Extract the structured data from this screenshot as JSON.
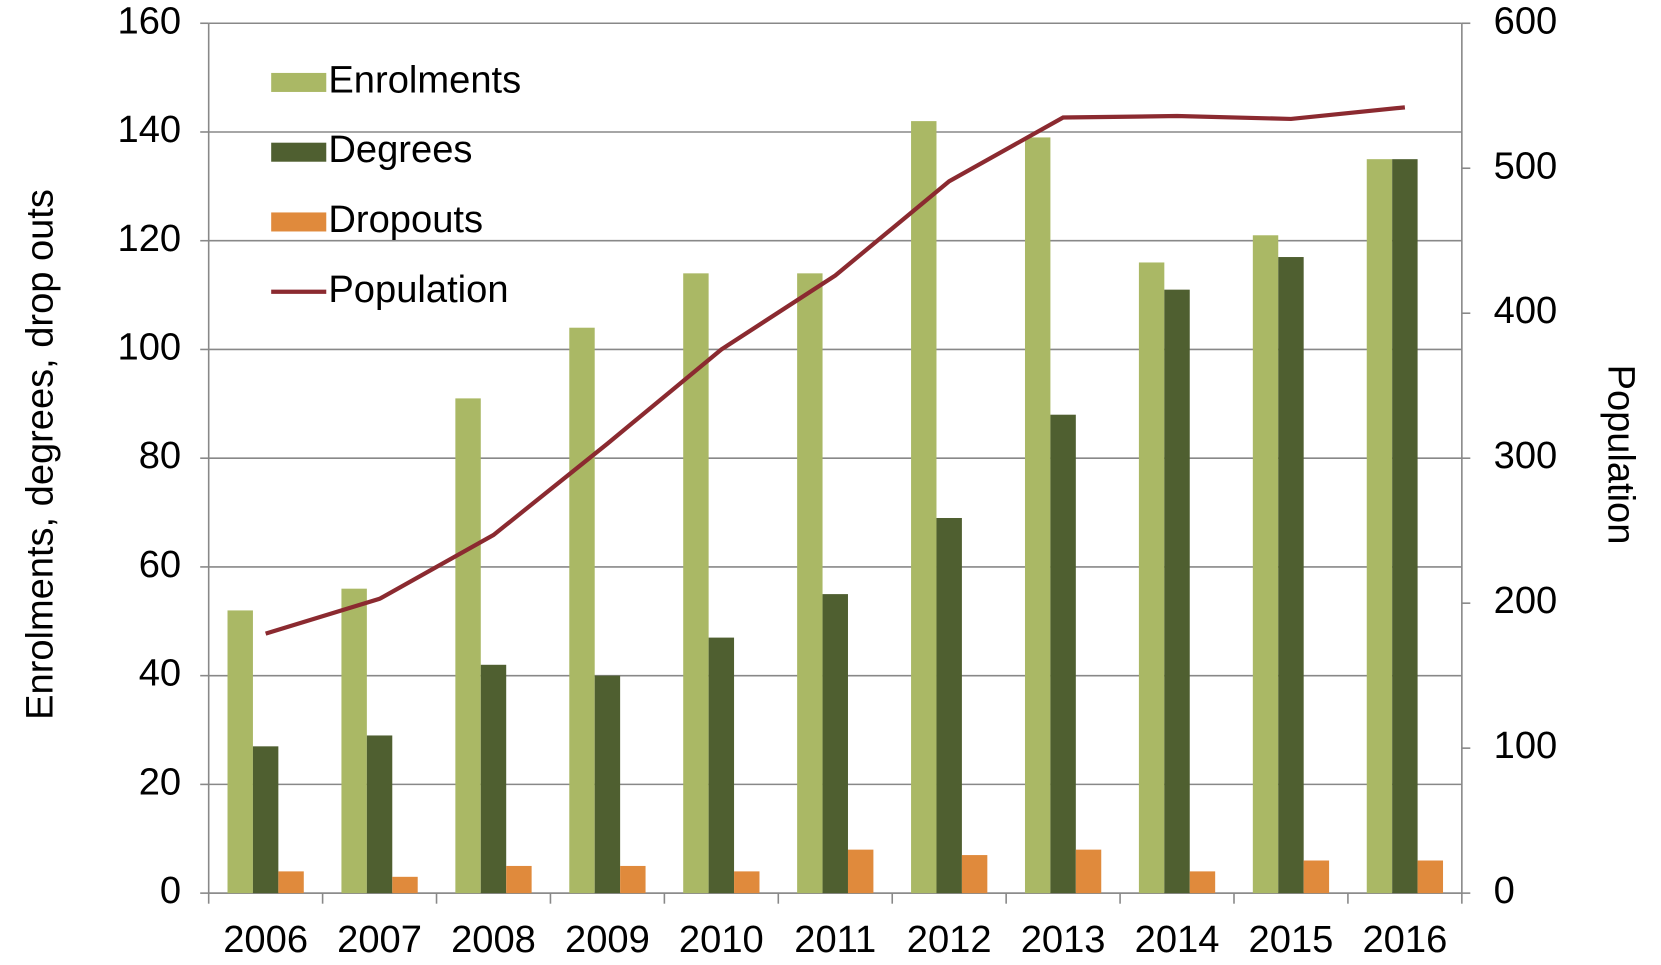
{
  "chart_data": {
    "type": "bar",
    "categories": [
      "2006",
      "2007",
      "2008",
      "2009",
      "2010",
      "2011",
      "2012",
      "2013",
      "2014",
      "2015",
      "2016"
    ],
    "y_label": "Enrolments, degrees, drop outs",
    "y2_label": "Population",
    "ylim": [
      0,
      160
    ],
    "yticks": [
      0,
      20,
      40,
      60,
      80,
      100,
      120,
      140,
      160
    ],
    "y2lim": [
      0,
      600
    ],
    "y2ticks": [
      0,
      100,
      200,
      300,
      400,
      500,
      600
    ],
    "grid": true,
    "legend": "top-left",
    "series": [
      {
        "name": "Enrolments",
        "color": "#aab865",
        "values": [
          52,
          56,
          91,
          104,
          114,
          114,
          142,
          139,
          116,
          121,
          135
        ]
      },
      {
        "name": "Degrees",
        "color": "#4f5f30",
        "values": [
          27,
          29,
          42,
          40,
          47,
          55,
          69,
          88,
          111,
          117,
          135
        ]
      },
      {
        "name": "Dropouts",
        "color": "#e08a3c",
        "values": [
          4,
          3,
          5,
          5,
          4,
          8,
          7,
          8,
          4,
          6,
          6
        ]
      },
      {
        "name": "Population",
        "color": "#8b2a30",
        "type": "line",
        "axis": "y2",
        "values": [
          179,
          203,
          247,
          310,
          375,
          426,
          491,
          535,
          536,
          534,
          542
        ]
      }
    ]
  }
}
